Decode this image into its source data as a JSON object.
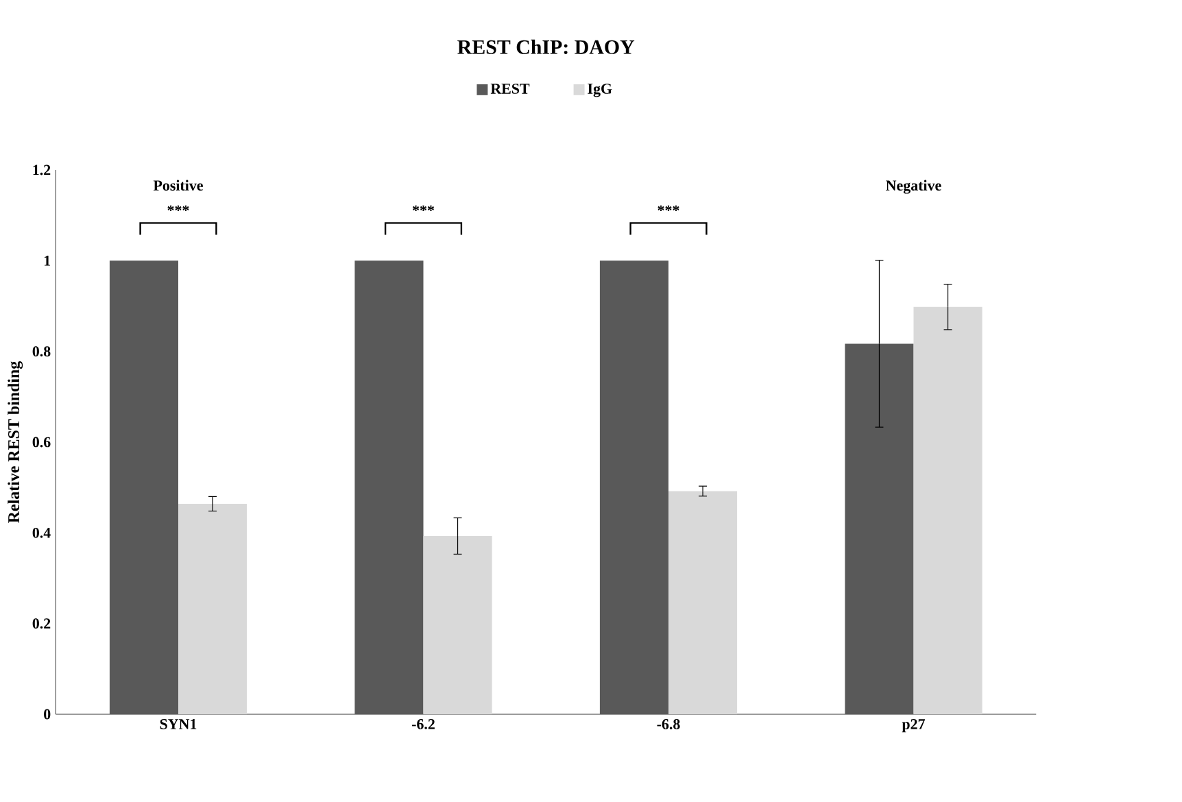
{
  "chart_data": {
    "type": "bar",
    "title": "REST ChIP: DAOY",
    "ylabel": "Relative REST binding",
    "categories": [
      "SYN1",
      "-6.2",
      "-6.8",
      "p27"
    ],
    "series": [
      {
        "name": "REST",
        "color": "#595959",
        "values": [
          1,
          1,
          1,
          0.817
        ],
        "errors": [
          null,
          null,
          null,
          0.184
        ]
      },
      {
        "name": "IgG",
        "color": "#d9d9d9",
        "values": [
          0.464,
          0.393,
          0.492,
          0.898
        ],
        "errors": [
          0.016,
          0.04,
          0.011,
          0.05
        ]
      }
    ],
    "ylim": [
      0,
      1.2
    ],
    "yticks": [
      0,
      0.2,
      0.4,
      0.6,
      0.8,
      1,
      1.2
    ],
    "legend": "top",
    "grid": false,
    "annotations": [
      "Positive",
      "Negative",
      "***",
      "***",
      "***"
    ]
  }
}
